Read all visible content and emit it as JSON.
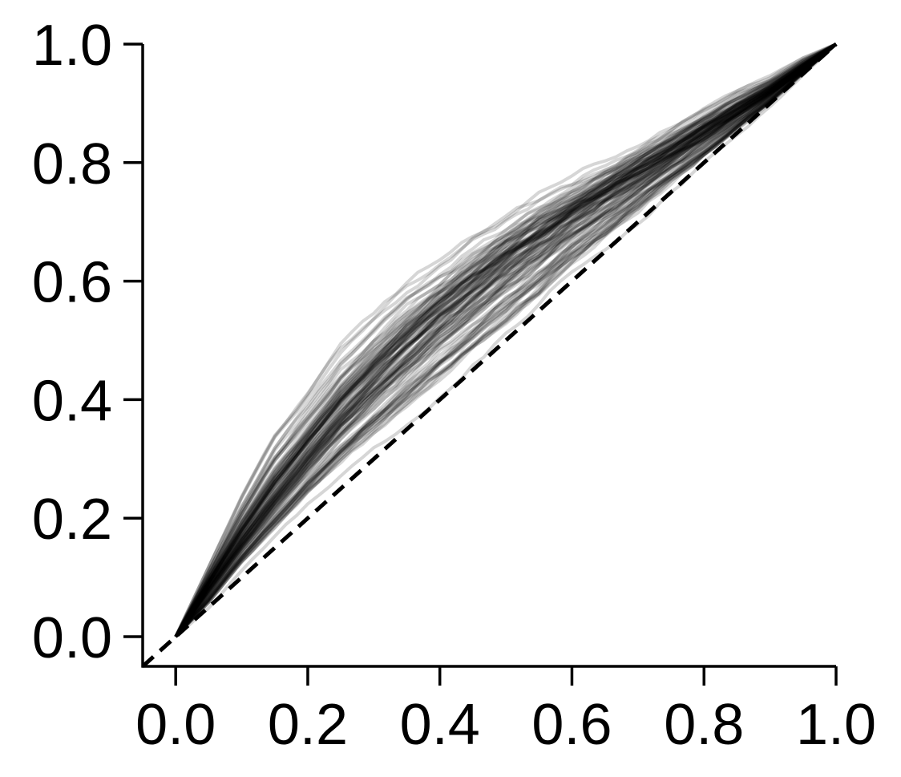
{
  "chart_data": {
    "type": "line",
    "title": "",
    "xlabel": "",
    "ylabel": "",
    "xlim": [
      -0.05,
      1.0
    ],
    "ylim": [
      -0.05,
      1.0
    ],
    "grid": false,
    "legend": "none",
    "x_ticks": [
      "0.0",
      "0.2",
      "0.4",
      "0.6",
      "0.8",
      "1.0"
    ],
    "y_ticks": [
      "0.0",
      "0.2",
      "0.4",
      "0.6",
      "0.8",
      "1.0"
    ],
    "line_color": "#000000",
    "line_opacity": 0.16,
    "num_curves": 100,
    "x": [
      0.0,
      0.05,
      0.1,
      0.15,
      0.2,
      0.25,
      0.3,
      0.35,
      0.4,
      0.45,
      0.5,
      0.55,
      0.6,
      0.65,
      0.7,
      0.75,
      0.8,
      0.85,
      0.9,
      0.95,
      1.0
    ],
    "mean_curve": [
      0.0,
      0.085,
      0.165,
      0.24,
      0.31,
      0.375,
      0.435,
      0.49,
      0.54,
      0.585,
      0.63,
      0.67,
      0.71,
      0.745,
      0.78,
      0.815,
      0.85,
      0.885,
      0.92,
      0.96,
      1.0
    ],
    "upper_envelope": [
      0.0,
      0.13,
      0.26,
      0.37,
      0.44,
      0.52,
      0.57,
      0.62,
      0.66,
      0.7,
      0.73,
      0.76,
      0.78,
      0.81,
      0.84,
      0.87,
      0.9,
      0.93,
      0.95,
      0.98,
      1.0
    ],
    "lower_envelope": [
      0.0,
      0.04,
      0.1,
      0.15,
      0.2,
      0.25,
      0.29,
      0.33,
      0.38,
      0.43,
      0.48,
      0.53,
      0.59,
      0.64,
      0.69,
      0.74,
      0.79,
      0.84,
      0.89,
      0.945,
      1.0
    ],
    "reference_line": {
      "style": "dashed",
      "x": [
        -0.05,
        1.0
      ],
      "y": [
        -0.05,
        1.0
      ]
    }
  }
}
